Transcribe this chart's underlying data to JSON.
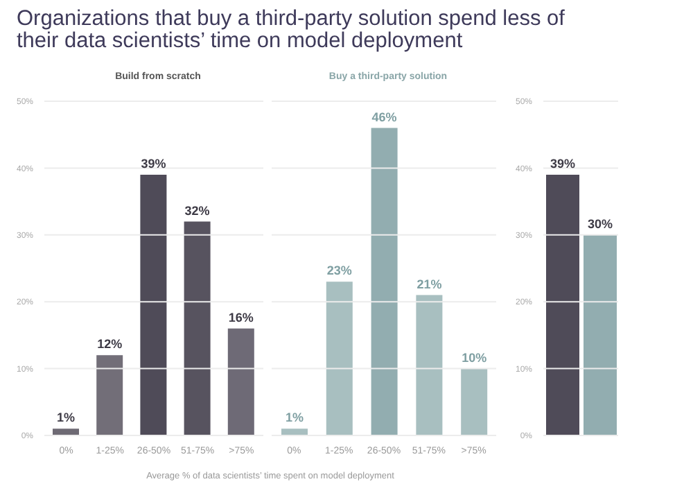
{
  "chart_data": [
    {
      "type": "bar",
      "title": "Organizations that buy a third-party solution spend less of their data scientists’ time on model deployment",
      "subtitle": "Build from scratch",
      "xlabel": "Average % of data scientists’ time spent on model deployment",
      "categories": [
        "0%",
        "1-25%",
        "26-50%",
        "51-75%",
        ">75%"
      ],
      "values": [
        1,
        12,
        39,
        32,
        16
      ],
      "colors": [
        "#6e6a74",
        "#726e78",
        "#4f4b58",
        "#57535f",
        "#6e6a76"
      ],
      "value_labels": [
        "1%",
        "12%",
        "39%",
        "32%",
        "16%"
      ],
      "ylim": [
        0,
        50
      ],
      "yticks": [
        {
          "value": 0,
          "label": "0%"
        },
        {
          "value": 10,
          "label": "10%"
        },
        {
          "value": 20,
          "label": "20%"
        },
        {
          "value": 30,
          "label": "30%"
        },
        {
          "value": 40,
          "label": "40%"
        },
        {
          "value": 50,
          "label": "50%"
        }
      ],
      "grid": "y"
    },
    {
      "type": "bar",
      "subtitle": "Buy a third-party solution",
      "categories": [
        "0%",
        "1-25%",
        "26-50%",
        "51-75%",
        ">75%"
      ],
      "values": [
        1,
        23,
        46,
        21,
        10
      ],
      "colors": [
        "#a8bfc0",
        "#a8bfc0",
        "#92adb0",
        "#a8bfc0",
        "#a8bfc0"
      ],
      "value_labels": [
        "1%",
        "23%",
        "46%",
        "21%",
        "10%"
      ],
      "ylim": [
        0,
        50
      ],
      "yticks": [
        0,
        10,
        20,
        30,
        40,
        50
      ],
      "grid": "y",
      "tick_labels": "x"
    },
    {
      "type": "bar",
      "categories": [
        null,
        null
      ],
      "values": [
        39,
        30
      ],
      "colors": [
        "#4f4b58",
        "#92adb0"
      ],
      "value_labels": [
        "39%",
        "30%"
      ],
      "ylim": [
        0,
        50
      ],
      "yticks": [
        {
          "value": 0,
          "label": "0%"
        },
        {
          "value": 10,
          "label": "10%"
        },
        {
          "value": 20,
          "label": "20%"
        },
        {
          "value": 30,
          "label": "30%"
        },
        {
          "value": 40,
          "label": "40%"
        },
        {
          "value": 50,
          "label": "50%"
        }
      ],
      "grid": "y"
    }
  ]
}
